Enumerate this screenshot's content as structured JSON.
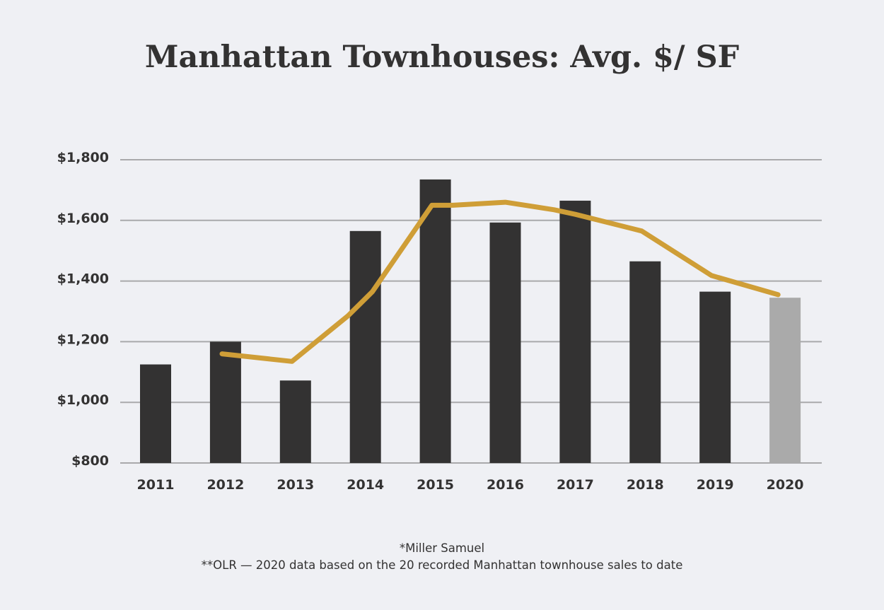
{
  "chart_data": {
    "type": "bar",
    "title": "Manhattan Townhouses: Avg. $/ SF",
    "xlabel": "",
    "ylabel": "",
    "ylim": [
      800,
      1800
    ],
    "ytick_values": [
      800,
      1000,
      1200,
      1400,
      1600,
      1800
    ],
    "ytick_labels": [
      "$800",
      "$1,000",
      "$1,200",
      "$1,400",
      "$1,600",
      "$1,800"
    ],
    "categories": [
      "2011",
      "2012",
      "2013",
      "2014",
      "2015",
      "2016",
      "2017",
      "2018",
      "2019",
      "2020"
    ],
    "series": [
      {
        "type": "bar",
        "values": [
          1125,
          1200,
          1072,
          1565,
          1735,
          1593,
          1665,
          1465,
          1365,
          1345
        ],
        "color": "#333232",
        "highlight_color": "#aaaaaa",
        "highlight_index": 9
      },
      {
        "type": "line",
        "points": [
          {
            "x": 2011.95,
            "y": 1160
          },
          {
            "x": 2012.95,
            "y": 1135
          },
          {
            "x": 2013.75,
            "y": 1285
          },
          {
            "x": 2014.1,
            "y": 1365
          },
          {
            "x": 2014.95,
            "y": 1650
          },
          {
            "x": 2015.25,
            "y": 1650
          },
          {
            "x": 2016.0,
            "y": 1660
          },
          {
            "x": 2016.7,
            "y": 1635
          },
          {
            "x": 2017.0,
            "y": 1620
          },
          {
            "x": 2017.95,
            "y": 1565
          },
          {
            "x": 2018.95,
            "y": 1418
          },
          {
            "x": 2019.9,
            "y": 1355
          }
        ],
        "color": "#cf9e37"
      }
    ],
    "grid": true,
    "legend": "none"
  },
  "footnotes": {
    "line1": "*Miller Samuel",
    "line2": "**OLR — 2020 data based on the 20 recorded Manhattan townhouse sales to date"
  }
}
